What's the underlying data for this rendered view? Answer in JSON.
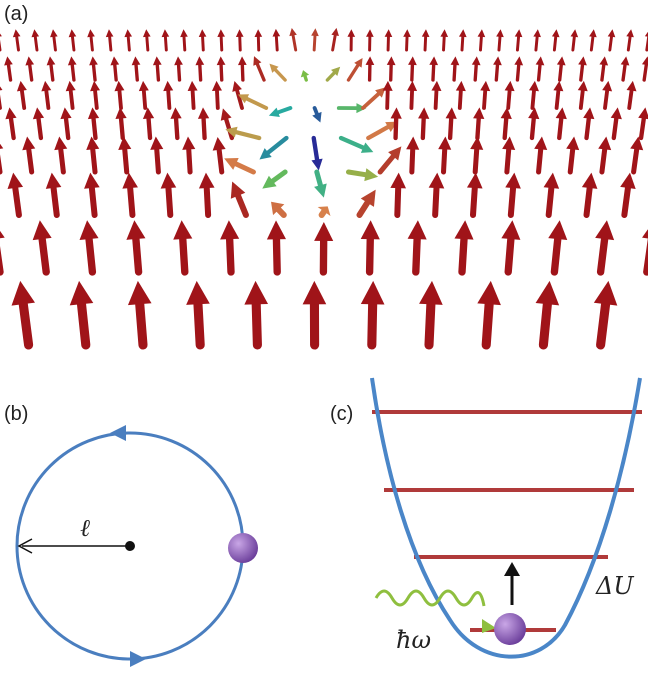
{
  "panels": {
    "a": {
      "label": "(a)"
    },
    "b": {
      "label": "(b)",
      "radius_label": "ℓ"
    },
    "c": {
      "label": "(c)",
      "photon_label": "ħω",
      "barrier_label": "ΔU"
    }
  }
}
